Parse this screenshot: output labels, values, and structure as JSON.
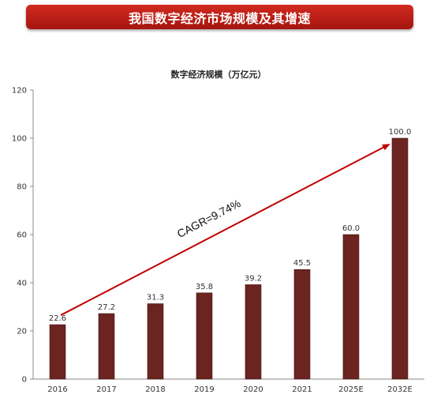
{
  "header": {
    "title": "我国数字经济市场规模及其增速"
  },
  "chart_data": {
    "type": "bar",
    "title": "数字经济规模（万亿元）",
    "categories": [
      "2016",
      "2017",
      "2018",
      "2019",
      "2020",
      "2021",
      "2025E",
      "2032E"
    ],
    "values": [
      22.6,
      27.2,
      31.3,
      35.8,
      39.2,
      45.5,
      60.0,
      100.0
    ],
    "value_labels": [
      "22.6",
      "27.2",
      "31.3",
      "35.8",
      "39.2",
      "45.5",
      "60.0",
      "100.0"
    ],
    "yticks": [
      0,
      20,
      40,
      60,
      80,
      100,
      120
    ],
    "ylim": [
      0,
      120
    ],
    "bar_color": "#6b2420",
    "annotation": {
      "text": "CAGR=9.74%",
      "arrow_color": "#c00000"
    },
    "grid": false,
    "legend": "none"
  }
}
